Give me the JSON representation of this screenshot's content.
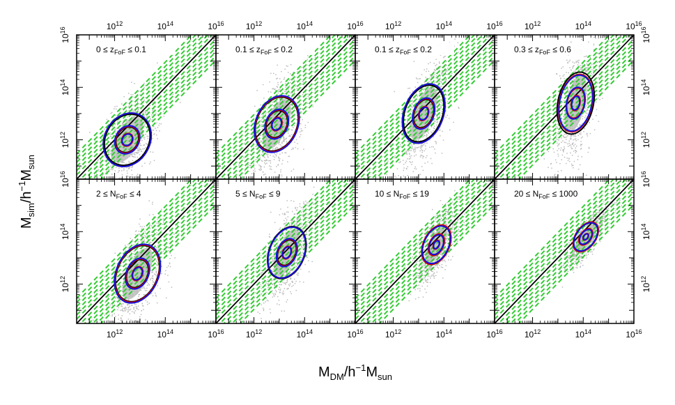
{
  "chart_data": {
    "type": "scatter",
    "xlabel": {
      "base": "M",
      "sub": "DM",
      "unit": "/h",
      "unit_sup": "−1",
      "unit_tail": "M",
      "unit_tail_sub": "sun"
    },
    "ylabel": {
      "base": "M",
      "sub": "sim",
      "unit": "/h",
      "unit_sup": "−1",
      "unit_tail": "M",
      "unit_tail_sub": "sun"
    },
    "xlim_log10": [
      10.5,
      16
    ],
    "ylim_log10": [
      10.5,
      16
    ],
    "tick_labels": [
      {
        "exp": 12,
        "base": "10",
        "sup": "12"
      },
      {
        "exp": 14,
        "base": "10",
        "sup": "14"
      },
      {
        "exp": 16,
        "base": "10",
        "sup": "16"
      }
    ],
    "diagonal": "1:1 line (black)",
    "band_color": "#33cc33",
    "point_color": "#bbbbbb",
    "contour_colors": {
      "black": "#000000",
      "red": "#dd0000",
      "blue": "#1111dd"
    },
    "panels": [
      {
        "label": {
          "pre": "0 ≤ z",
          "sub": "FoF",
          "post": " ≤ 0.1"
        },
        "center": [
          12.5,
          12.0
        ],
        "sx": 0.75,
        "sy": 0.95,
        "angle": 62,
        "contours": [
          {
            "color": "black",
            "scales": [
              0.45,
              1.0,
              2.0
            ]
          },
          {
            "color": "red",
            "scales": [
              0.5,
              1.05,
              2.1
            ]
          },
          {
            "color": "blue",
            "scales": [
              0.45,
              1.1,
              2.1
            ]
          }
        ]
      },
      {
        "label": {
          "pre": "0.1 ≤ z",
          "sub": "FoF",
          "post": " ≤ 0.2"
        },
        "center": [
          12.9,
          12.6
        ],
        "sx": 0.7,
        "sy": 1.0,
        "angle": 68,
        "contours": [
          {
            "color": "black",
            "scales": [
              0.45,
              1.0,
              2.0
            ]
          },
          {
            "color": "red",
            "scales": [
              0.5,
              1.05,
              2.05
            ]
          },
          {
            "color": "blue",
            "scales": [
              0.45,
              1.1,
              2.1
            ]
          }
        ]
      },
      {
        "label": {
          "pre": "0.1 ≤ z",
          "sub": "FoF",
          "post": " ≤ 0.2"
        },
        "center": [
          13.2,
          13.0
        ],
        "sx": 0.65,
        "sy": 1.05,
        "angle": 70,
        "contours": [
          {
            "color": "black",
            "scales": [
              0.45,
              1.0,
              2.0
            ]
          },
          {
            "color": "red",
            "scales": [
              0.5,
              1.05,
              2.1
            ]
          },
          {
            "color": "blue",
            "scales": [
              0.45,
              1.1,
              2.1
            ]
          }
        ]
      },
      {
        "label": {
          "pre": "0.3 ≤ z",
          "sub": "FoF",
          "post": " ≤ 0.6"
        },
        "center": [
          13.7,
          13.4
        ],
        "sx": 0.6,
        "sy": 1.1,
        "angle": 78,
        "contours": [
          {
            "color": "black",
            "scales": [
              0.45,
              1.0,
              2.05
            ]
          },
          {
            "color": "red",
            "scales": [
              0.5,
              1.0,
              1.9
            ]
          },
          {
            "color": "blue",
            "scales": [
              0.45,
              1.05,
              1.85
            ]
          }
        ]
      },
      {
        "label": {
          "pre": "2 ≤ N",
          "sub": "FoF",
          "post": " ≤ 4"
        },
        "center": [
          12.9,
          12.4
        ],
        "sx": 0.7,
        "sy": 1.05,
        "angle": 66,
        "contours": [
          {
            "color": "black",
            "scales": [
              0.45,
              1.0,
              2.0
            ]
          },
          {
            "color": "red",
            "scales": [
              0.5,
              1.05,
              2.05
            ]
          },
          {
            "color": "blue",
            "scales": [
              0.45,
              1.1,
              2.1
            ]
          }
        ]
      },
      {
        "label": {
          "pre": "5 ≤ N",
          "sub": "FoF",
          "post": " ≤ 9"
        },
        "center": [
          13.3,
          13.2
        ],
        "sx": 0.6,
        "sy": 0.95,
        "angle": 68,
        "contours": [
          {
            "color": "black",
            "scales": [
              0.45,
              1.0,
              2.05
            ]
          },
          {
            "color": "red",
            "scales": [
              0.5,
              1.05,
              2.0
            ]
          },
          {
            "color": "blue",
            "scales": [
              0.45,
              1.1,
              2.0
            ]
          }
        ]
      },
      {
        "label": {
          "pre": "10 ≤ N",
          "sub": "FoF",
          "post": " ≤ 19"
        },
        "center": [
          13.7,
          13.5
        ],
        "sx": 0.45,
        "sy": 0.75,
        "angle": 65,
        "contours": [
          {
            "color": "black",
            "scales": [
              0.4,
              1.0,
              1.9
            ]
          },
          {
            "color": "red",
            "scales": [
              0.45,
              1.1,
              2.0
            ]
          },
          {
            "color": "blue",
            "scales": [
              0.4,
              1.0,
              1.9
            ]
          }
        ]
      },
      {
        "label": {
          "pre": "20 ≤ N",
          "sub": "FoF",
          "post": " ≤ 1000"
        },
        "center": [
          14.1,
          13.8
        ],
        "sx": 0.35,
        "sy": 0.6,
        "angle": 55,
        "contours": [
          {
            "color": "black",
            "scales": [
              0.4,
              1.0,
              1.9
            ]
          },
          {
            "color": "red",
            "scales": [
              0.45,
              1.1,
              2.0
            ]
          },
          {
            "color": "blue",
            "scales": [
              0.4,
              1.0,
              1.9
            ]
          }
        ]
      }
    ]
  }
}
